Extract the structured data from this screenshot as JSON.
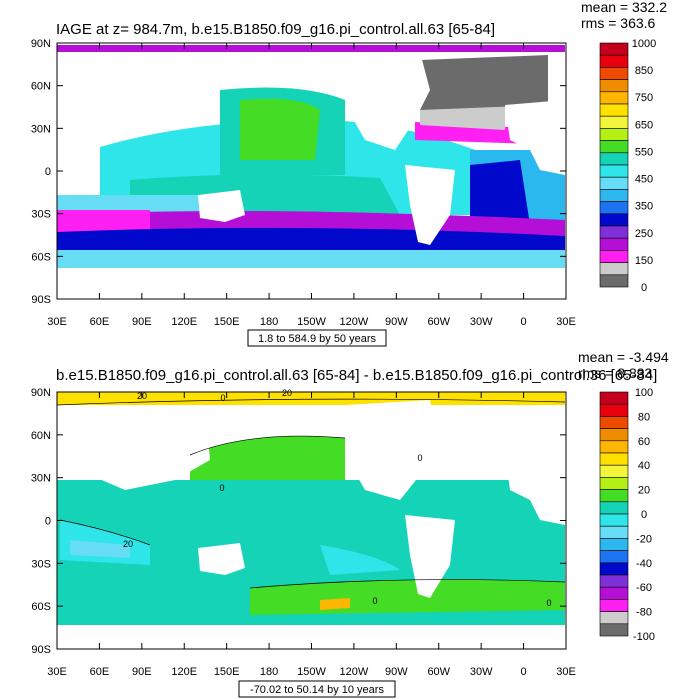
{
  "chart_data": [
    {
      "type": "heatmap",
      "title": "IAGE at z= 984.7m, b.e15.B1850.f09_g16.pi_control.all.63 [65-84]",
      "stats": {
        "mean": "mean = 332.2",
        "rms": "rms = 363.6"
      },
      "range_label": "1.8 to 584.9 by 50 years",
      "xlabels": [
        "30E",
        "60E",
        "90E",
        "120E",
        "150E",
        "180",
        "150W",
        "120W",
        "90W",
        "60W",
        "30W",
        "0",
        "30E"
      ],
      "ylabels": [
        "90N",
        "60N",
        "30N",
        "0",
        "30S",
        "60S",
        "90S"
      ],
      "colorbar": {
        "labels": [
          "1000",
          "850",
          "750",
          "650",
          "550",
          "450",
          "350",
          "250",
          "150",
          "0"
        ],
        "colors": [
          "#c4001c",
          "#e8000f",
          "#ef4a00",
          "#f08c00",
          "#ffb600",
          "#ffe100",
          "#f2f53a",
          "#b4f014",
          "#45dc25",
          "#14d3b6",
          "#2ee6ea",
          "#66dcf5",
          "#2ab8ef",
          "#1c74f2",
          "#0008cc",
          "#7f2fd8",
          "#b50fd7",
          "#ff1ff2",
          "#cccccc",
          "#6b6b6b"
        ]
      }
    },
    {
      "type": "heatmap",
      "title": "b.e15.B1850.f09_g16.pi_control.all.63 [65-84] - b.e15.B1850.f09_g16.pi_control.36 [65-84]",
      "stats": {
        "mean": "mean = -3.494",
        "rms": "rms = 8.833"
      },
      "range_label": "-70.02 to 50.14 by 10 years",
      "xlabels": [
        "30E",
        "60E",
        "90E",
        "120E",
        "150E",
        "180",
        "150W",
        "120W",
        "90W",
        "60W",
        "30W",
        "0",
        "30E"
      ],
      "ylabels": [
        "90N",
        "60N",
        "30N",
        "0",
        "30S",
        "60S",
        "90S"
      ],
      "contour_labels": [
        "20",
        "0",
        "20",
        "0",
        "0",
        "20",
        "0",
        "0"
      ],
      "colorbar": {
        "labels": [
          "100",
          "80",
          "60",
          "40",
          "20",
          "0",
          "-20",
          "-40",
          "-60",
          "-80",
          "-100"
        ],
        "colors": [
          "#c4001c",
          "#e8000f",
          "#ef4a00",
          "#f08c00",
          "#ffb600",
          "#ffe100",
          "#f2f53a",
          "#b4f014",
          "#45dc25",
          "#14d3b6",
          "#2ee6ea",
          "#66dcf5",
          "#2ab8ef",
          "#1c74f2",
          "#0008cc",
          "#7f2fd8",
          "#b50fd7",
          "#ff1ff2",
          "#cccccc",
          "#6b6b6b"
        ]
      }
    }
  ]
}
